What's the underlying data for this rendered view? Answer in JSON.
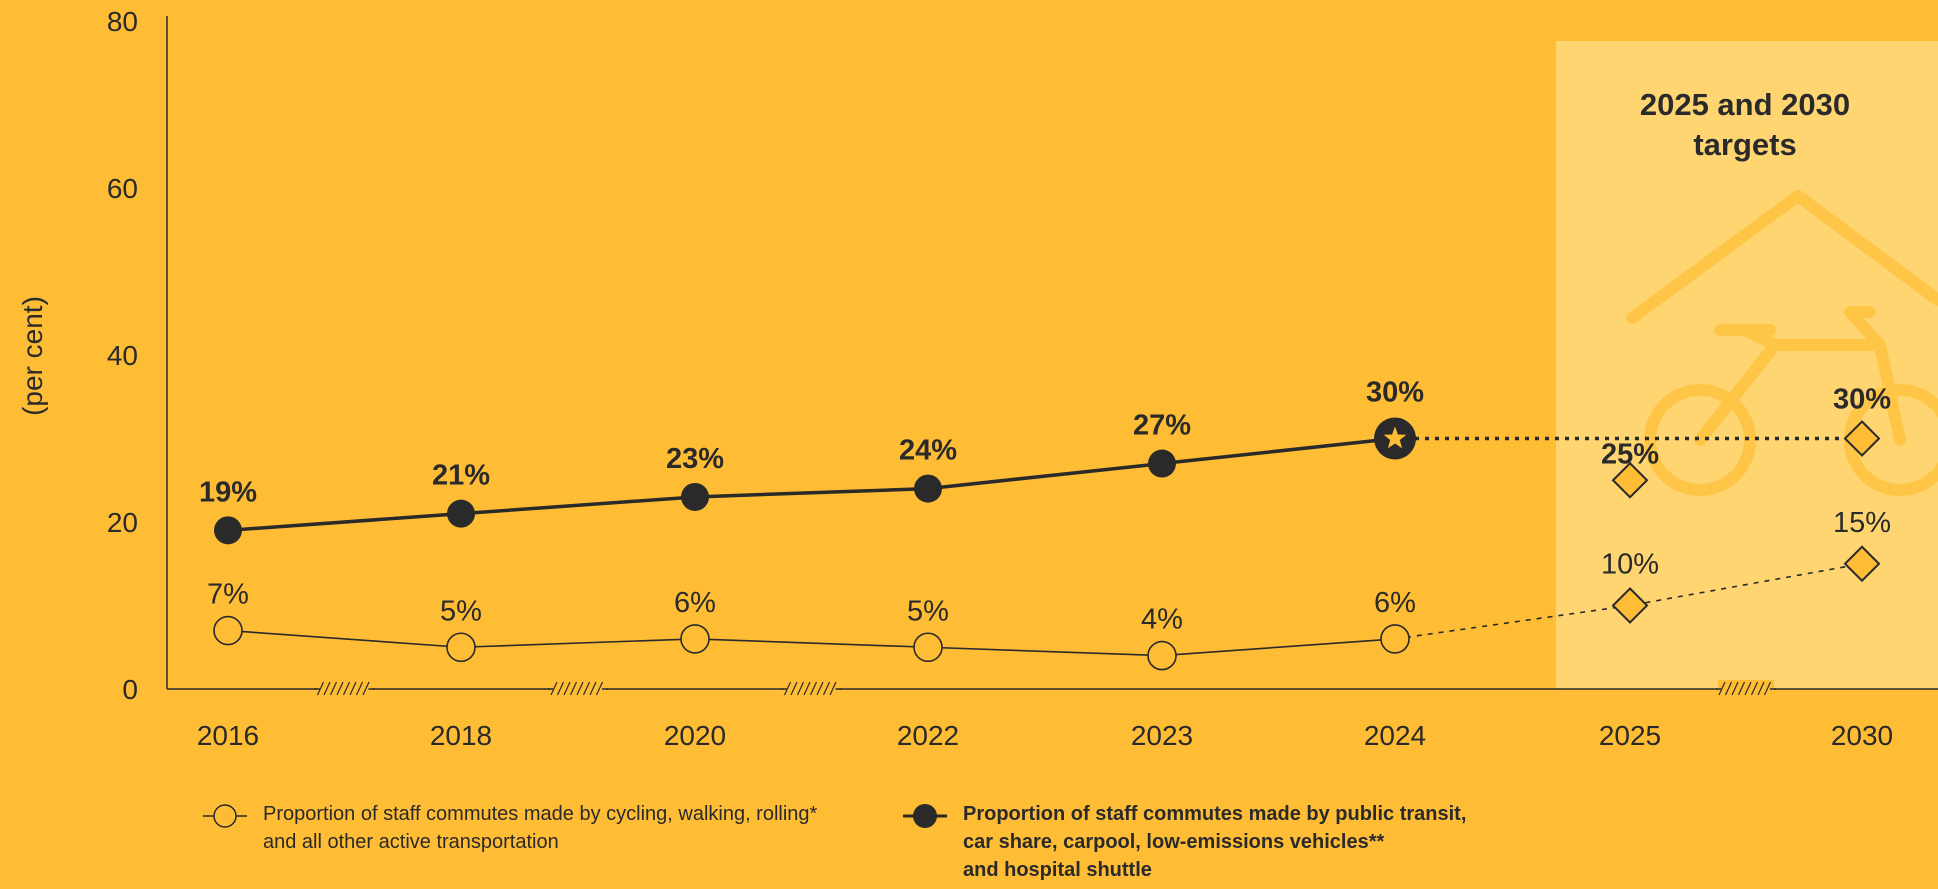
{
  "chart_data": {
    "type": "line",
    "categories": [
      "2016",
      "2018",
      "2020",
      "2022",
      "2023",
      "2024",
      "2025",
      "2030"
    ],
    "ylabel": "(per cent)",
    "ylim": [
      0,
      80
    ],
    "yticks": [
      "0",
      "20",
      "40",
      "60",
      "80"
    ],
    "grid": false,
    "series": [
      {
        "name": "Proportion of staff commutes made by public transit, car share, carpool, low-emissions vehicles** and hospital shuttle",
        "values": [
          19,
          21,
          23,
          24,
          27,
          30,
          25,
          30
        ],
        "labels": [
          "19%",
          "21%",
          "23%",
          "24%",
          "27%",
          "30%",
          "25%",
          "30%"
        ],
        "color": "#2a2a2a",
        "style": "bold"
      },
      {
        "name": "Proportion of staff commutes made by cycling, walking, rolling* and all other active transportation",
        "values": [
          7,
          5,
          6,
          5,
          4,
          6,
          10,
          15
        ],
        "labels": [
          "7%",
          "5%",
          "6%",
          "5%",
          "4%",
          "6%",
          "10%",
          "15%"
        ],
        "color": "#2a2a2a",
        "style": "regular"
      }
    ],
    "target_panel": {
      "title_lines": [
        "2025 and 2030",
        "targets"
      ],
      "categories": [
        "2025",
        "2030"
      ],
      "background": "#FFD572"
    },
    "highlight_icon": "star-icon",
    "decoration_icon": "bicycle-house-icon",
    "axis_break_icon": "axis-break-marks",
    "colors": {
      "background": "#FFBD35",
      "ink": "#2a2a2a",
      "star": "#FFBD35"
    }
  },
  "legend": {
    "open": {
      "lines": [
        "Proportion of staff commutes made by cycling, walking, rolling*",
        "and all other active transportation"
      ],
      "icon": "open-circle-marker-icon"
    },
    "filled": {
      "lines": [
        "Proportion of staff commutes made by public transit,",
        "car share, carpool, low-emissions vehicles**",
        "and hospital shuttle"
      ],
      "icon": "filled-circle-marker-icon"
    }
  }
}
